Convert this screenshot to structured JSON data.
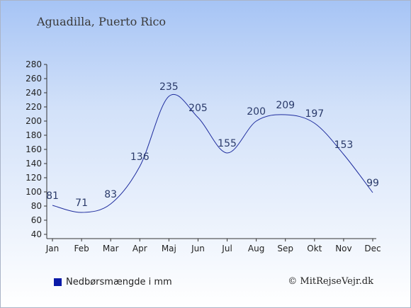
{
  "chart_data": {
    "type": "line",
    "title": "Aguadilla, Puerto Rico",
    "categories": [
      "Jan",
      "Feb",
      "Mar",
      "Apr",
      "Maj",
      "Jun",
      "Jul",
      "Aug",
      "Sep",
      "Okt",
      "Nov",
      "Dec"
    ],
    "series": [
      {
        "name": "Nedbørsmængde i mm",
        "values": [
          81,
          71,
          83,
          136,
          235,
          205,
          155,
          200,
          209,
          197,
          153,
          99
        ]
      }
    ],
    "ylim": [
      40,
      280
    ],
    "yticks": [
      40,
      60,
      80,
      100,
      120,
      140,
      160,
      180,
      200,
      220,
      240,
      260,
      280
    ],
    "grid": false,
    "legend_position": "bottom-left",
    "line_color": "#1f2d9e",
    "legend_color": "#0a1aa8"
  },
  "copyright": "© MitRejseVejr.dk"
}
